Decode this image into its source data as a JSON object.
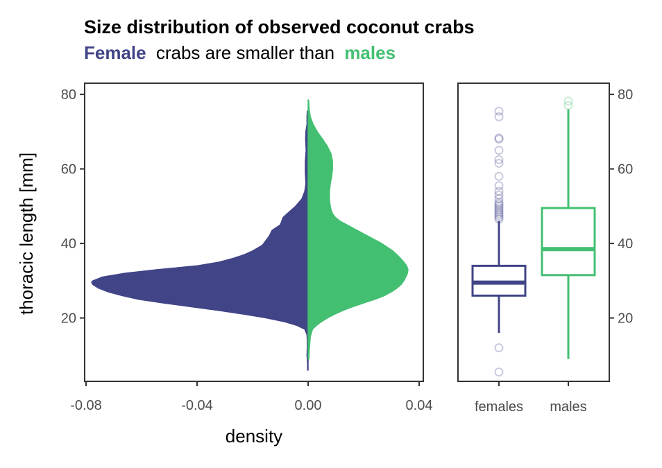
{
  "chart_data": [
    {
      "type": "violin",
      "title": "Size distribution of observed coconut crabs",
      "subtitle": {
        "female_word": "Female",
        "middle": "crabs are smaller than",
        "male_word": "males"
      },
      "xlabel": "density",
      "ylabel": "thoracic length [mm]",
      "xlim": [
        -0.0805,
        0.0415
      ],
      "ylim": [
        3,
        83
      ],
      "x_ticks": [
        -0.08,
        -0.04,
        0.0,
        0.04
      ],
      "x_tick_labels": [
        "-0.08",
        "-0.04",
        "0.00",
        "0.04"
      ],
      "y_ticks": [
        20,
        40,
        60,
        80
      ],
      "y_tick_labels": [
        "20",
        "40",
        "60",
        "80"
      ],
      "grid": false,
      "series": [
        {
          "name": "Female",
          "color": "#414487",
          "side": "negative",
          "points": [
            {
              "y": 6,
              "density": 0.0002
            },
            {
              "y": 8,
              "density": 0.0002
            },
            {
              "y": 10,
              "density": 0.0004
            },
            {
              "y": 12,
              "density": 0.0003
            },
            {
              "y": 14,
              "density": 0.0003
            },
            {
              "y": 15.5,
              "density": 0.0004
            },
            {
              "y": 17,
              "density": 0.0012
            },
            {
              "y": 18,
              "density": 0.004
            },
            {
              "y": 19,
              "density": 0.0085
            },
            {
              "y": 20,
              "density": 0.015
            },
            {
              "y": 21,
              "density": 0.023
            },
            {
              "y": 22,
              "density": 0.032
            },
            {
              "y": 23,
              "density": 0.042
            },
            {
              "y": 24,
              "density": 0.052
            },
            {
              "y": 25,
              "density": 0.061
            },
            {
              "y": 26,
              "density": 0.067
            },
            {
              "y": 27,
              "density": 0.072
            },
            {
              "y": 28,
              "density": 0.0755
            },
            {
              "y": 29,
              "density": 0.0776
            },
            {
              "y": 29.6,
              "density": 0.078
            },
            {
              "y": 30,
              "density": 0.0775
            },
            {
              "y": 31,
              "density": 0.074
            },
            {
              "y": 32,
              "density": 0.066
            },
            {
              "y": 33,
              "density": 0.054
            },
            {
              "y": 34,
              "density": 0.04
            },
            {
              "y": 35,
              "density": 0.032
            },
            {
              "y": 36,
              "density": 0.027
            },
            {
              "y": 37,
              "density": 0.023
            },
            {
              "y": 38,
              "density": 0.02
            },
            {
              "y": 39.5,
              "density": 0.0165
            },
            {
              "y": 41,
              "density": 0.015
            },
            {
              "y": 42,
              "density": 0.014
            },
            {
              "y": 43.5,
              "density": 0.013
            },
            {
              "y": 45,
              "density": 0.01
            },
            {
              "y": 47,
              "density": 0.009
            },
            {
              "y": 48,
              "density": 0.0075
            },
            {
              "y": 50,
              "density": 0.0045
            },
            {
              "y": 52,
              "density": 0.0022
            },
            {
              "y": 54,
              "density": 0.0012
            },
            {
              "y": 56,
              "density": 0.0008
            },
            {
              "y": 59,
              "density": 0.001
            },
            {
              "y": 62,
              "density": 0.001
            },
            {
              "y": 65,
              "density": 0.0007
            },
            {
              "y": 68,
              "density": 0.0009
            },
            {
              "y": 70,
              "density": 0.0008
            },
            {
              "y": 72,
              "density": 0.0004
            },
            {
              "y": 74,
              "density": 0.0004
            },
            {
              "y": 75.5,
              "density": 0.0003
            }
          ]
        },
        {
          "name": "males",
          "color": "#43bf71",
          "side": "positive",
          "points": [
            {
              "y": 9,
              "density": 0.0003
            },
            {
              "y": 11,
              "density": 0.0004
            },
            {
              "y": 13,
              "density": 0.0006
            },
            {
              "y": 15,
              "density": 0.0008
            },
            {
              "y": 17,
              "density": 0.0016
            },
            {
              "y": 18,
              "density": 0.003
            },
            {
              "y": 19,
              "density": 0.0048
            },
            {
              "y": 20,
              "density": 0.007
            },
            {
              "y": 21,
              "density": 0.0095
            },
            {
              "y": 22,
              "density": 0.0125
            },
            {
              "y": 23,
              "density": 0.016
            },
            {
              "y": 24,
              "density": 0.02
            },
            {
              "y": 25,
              "density": 0.024
            },
            {
              "y": 26,
              "density": 0.0275
            },
            {
              "y": 27,
              "density": 0.03
            },
            {
              "y": 28,
              "density": 0.032
            },
            {
              "y": 29,
              "density": 0.0335
            },
            {
              "y": 30,
              "density": 0.0345
            },
            {
              "y": 31,
              "density": 0.0352
            },
            {
              "y": 32,
              "density": 0.0358
            },
            {
              "y": 33,
              "density": 0.036
            },
            {
              "y": 34,
              "density": 0.0355
            },
            {
              "y": 35,
              "density": 0.0345
            },
            {
              "y": 36,
              "density": 0.0333
            },
            {
              "y": 37,
              "density": 0.032
            },
            {
              "y": 38,
              "density": 0.0305
            },
            {
              "y": 39,
              "density": 0.0285
            },
            {
              "y": 40,
              "density": 0.0265
            },
            {
              "y": 41,
              "density": 0.024
            },
            {
              "y": 42,
              "density": 0.0215
            },
            {
              "y": 43,
              "density": 0.019
            },
            {
              "y": 44,
              "density": 0.0165
            },
            {
              "y": 45,
              "density": 0.014
            },
            {
              "y": 46,
              "density": 0.0115
            },
            {
              "y": 47,
              "density": 0.0098
            },
            {
              "y": 48,
              "density": 0.0088
            },
            {
              "y": 49,
              "density": 0.0083
            },
            {
              "y": 50,
              "density": 0.008
            },
            {
              "y": 51,
              "density": 0.0078
            },
            {
              "y": 52,
              "density": 0.0077
            },
            {
              "y": 54,
              "density": 0.0077
            },
            {
              "y": 56,
              "density": 0.008
            },
            {
              "y": 58,
              "density": 0.0085
            },
            {
              "y": 60,
              "density": 0.0088
            },
            {
              "y": 62,
              "density": 0.0088
            },
            {
              "y": 64,
              "density": 0.0083
            },
            {
              "y": 66,
              "density": 0.007
            },
            {
              "y": 68,
              "density": 0.0052
            },
            {
              "y": 70,
              "density": 0.0033
            },
            {
              "y": 72,
              "density": 0.0018
            },
            {
              "y": 74,
              "density": 0.0008
            },
            {
              "y": 76,
              "density": 0.0004
            },
            {
              "y": 77,
              "density": 0.0003
            },
            {
              "y": 78.5,
              "density": 0.0002
            }
          ]
        }
      ]
    },
    {
      "type": "box",
      "categories": [
        "females",
        "males"
      ],
      "ylim": [
        3,
        83
      ],
      "y_ticks": [
        20,
        40,
        60,
        80
      ],
      "y_tick_labels": [
        "20",
        "40",
        "60",
        "80"
      ],
      "y_axis_side": "right",
      "grid": false,
      "boxes": [
        {
          "category": "females",
          "color": "#414487",
          "lower_whisker": 16,
          "q1": 26,
          "median": 29.5,
          "q3": 34,
          "upper_whisker": 46,
          "outliers": [
            5.5,
            12,
            46.5,
            47,
            47.5,
            48,
            48.5,
            49,
            49.5,
            50,
            50.5,
            51,
            52,
            53,
            54,
            55.5,
            58,
            61.5,
            62.5,
            65,
            68,
            68.3,
            74,
            75.5
          ]
        },
        {
          "category": "males",
          "color": "#43bf71",
          "lower_whisker": 9,
          "q1": 31.5,
          "median": 38.5,
          "q3": 49.5,
          "upper_whisker": 76,
          "outliers": [
            77,
            78.2
          ]
        }
      ]
    }
  ]
}
